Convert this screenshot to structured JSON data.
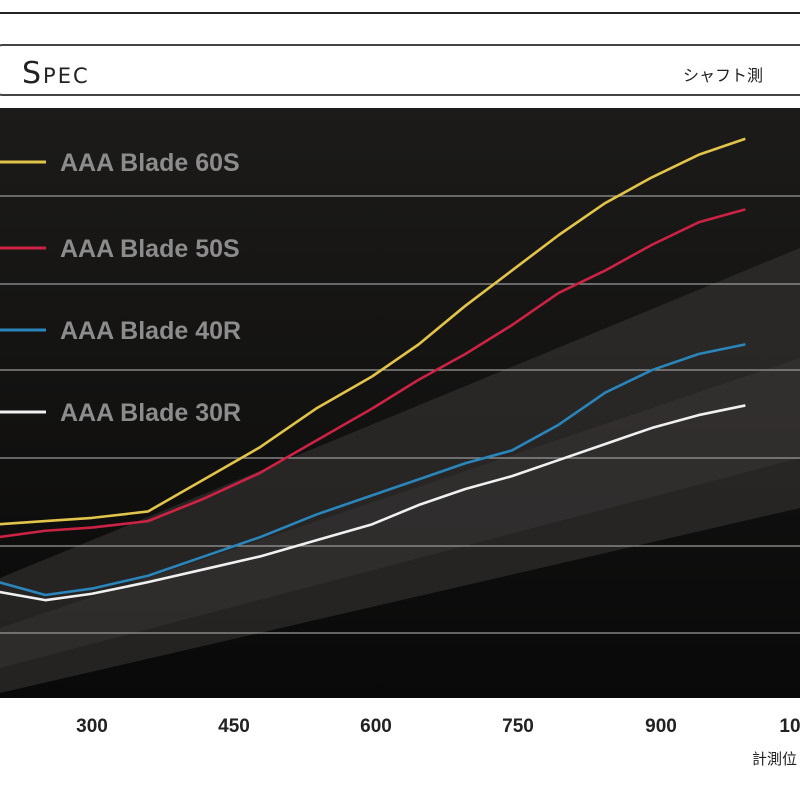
{
  "header": {
    "spec_title": "Spec",
    "note": "シャフト測"
  },
  "chart_data": {
    "type": "line",
    "title": "",
    "xlabel": "計測位",
    "ylabel": "",
    "x_ticks": [
      300,
      450,
      600,
      750,
      900,
      "10"
    ],
    "xlim": [
      200,
      1000
    ],
    "ylim": [
      0,
      7.5
    ],
    "grid": true,
    "legend_position": "top-left",
    "series": [
      {
        "name": "AAA Blade 60S",
        "color": "#e2c44a",
        "points": [
          [
            200,
            1.8
          ],
          [
            250,
            1.85
          ],
          [
            300,
            1.9
          ],
          [
            360,
            2.0
          ],
          [
            420,
            2.5
          ],
          [
            480,
            3.0
          ],
          [
            540,
            3.6
          ],
          [
            600,
            4.1
          ],
          [
            650,
            4.6
          ],
          [
            700,
            5.2
          ],
          [
            750,
            5.75
          ],
          [
            800,
            6.3
          ],
          [
            850,
            6.8
          ],
          [
            900,
            7.2
          ],
          [
            950,
            7.55
          ],
          [
            1000,
            7.8
          ]
        ]
      },
      {
        "name": "AAA Blade 50S",
        "color": "#cc2244",
        "points": [
          [
            200,
            1.6
          ],
          [
            250,
            1.7
          ],
          [
            300,
            1.75
          ],
          [
            360,
            1.85
          ],
          [
            420,
            2.2
          ],
          [
            480,
            2.6
          ],
          [
            540,
            3.1
          ],
          [
            600,
            3.6
          ],
          [
            650,
            4.05
          ],
          [
            700,
            4.45
          ],
          [
            750,
            4.9
          ],
          [
            800,
            5.4
          ],
          [
            850,
            5.75
          ],
          [
            900,
            6.15
          ],
          [
            950,
            6.5
          ],
          [
            1000,
            6.7
          ]
        ]
      },
      {
        "name": "AAA Blade 40R",
        "color": "#2a85bb",
        "points": [
          [
            200,
            0.9
          ],
          [
            250,
            0.7
          ],
          [
            300,
            0.8
          ],
          [
            360,
            1.0
          ],
          [
            420,
            1.3
          ],
          [
            480,
            1.6
          ],
          [
            540,
            1.95
          ],
          [
            600,
            2.25
          ],
          [
            650,
            2.5
          ],
          [
            700,
            2.75
          ],
          [
            750,
            2.95
          ],
          [
            800,
            3.35
          ],
          [
            850,
            3.85
          ],
          [
            900,
            4.2
          ],
          [
            950,
            4.45
          ],
          [
            1000,
            4.6
          ]
        ]
      },
      {
        "name": "AAA Blade 30R",
        "color": "#f0f0f0",
        "points": [
          [
            200,
            0.75
          ],
          [
            250,
            0.62
          ],
          [
            300,
            0.72
          ],
          [
            360,
            0.9
          ],
          [
            420,
            1.1
          ],
          [
            480,
            1.3
          ],
          [
            540,
            1.55
          ],
          [
            600,
            1.8
          ],
          [
            650,
            2.1
          ],
          [
            700,
            2.35
          ],
          [
            750,
            2.55
          ],
          [
            800,
            2.8
          ],
          [
            850,
            3.05
          ],
          [
            900,
            3.3
          ],
          [
            950,
            3.5
          ],
          [
            1000,
            3.65
          ]
        ]
      }
    ]
  }
}
